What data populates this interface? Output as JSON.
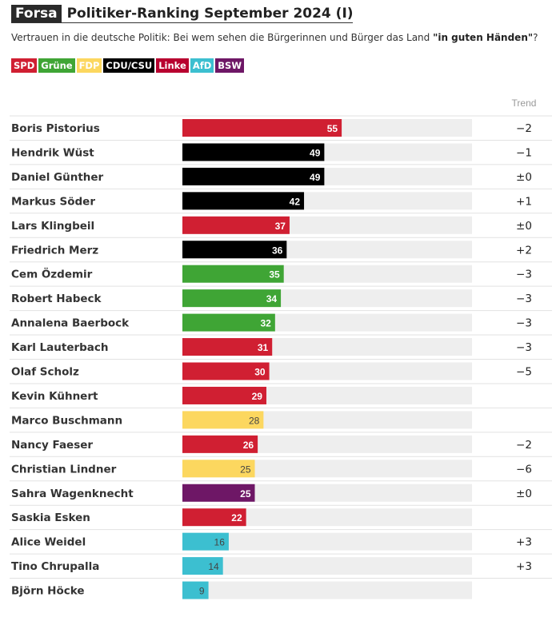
{
  "header": {
    "brand": "Forsa",
    "title": "Politiker-Ranking September 2024 (I)",
    "subtitle_prefix": "Vertrauen in die deutsche Politik: Bei wem sehen die Bürgerinnen und Bürger das Land ",
    "subtitle_bold": "\"in guten Händen\"",
    "subtitle_suffix": "?"
  },
  "legend": [
    {
      "label": "SPD",
      "color": "#d01f32"
    },
    {
      "label": "Grüne",
      "color": "#3fa535"
    },
    {
      "label": "FDP",
      "color": "#fcd75f"
    },
    {
      "label": "CDU/CSU",
      "color": "#000000"
    },
    {
      "label": "Linke",
      "color": "#b8002f"
    },
    {
      "label": "AfD",
      "color": "#3cbfd0"
    },
    {
      "label": "BSW",
      "color": "#6e1766"
    }
  ],
  "chart_data": {
    "type": "bar",
    "orientation": "horizontal",
    "xlim": [
      0,
      100
    ],
    "trend_header": "Trend",
    "rows": [
      {
        "name": "Boris Pistorius",
        "value": 55,
        "party": "SPD",
        "color": "#d01f32",
        "trend": "−2"
      },
      {
        "name": "Hendrik Wüst",
        "value": 49,
        "party": "CDU/CSU",
        "color": "#000000",
        "trend": "−1"
      },
      {
        "name": "Daniel Günther",
        "value": 49,
        "party": "CDU/CSU",
        "color": "#000000",
        "trend": "±0"
      },
      {
        "name": "Markus Söder",
        "value": 42,
        "party": "CDU/CSU",
        "color": "#000000",
        "trend": "+1"
      },
      {
        "name": "Lars Klingbeil",
        "value": 37,
        "party": "SPD",
        "color": "#d01f32",
        "trend": "±0"
      },
      {
        "name": "Friedrich Merz",
        "value": 36,
        "party": "CDU/CSU",
        "color": "#000000",
        "trend": "+2"
      },
      {
        "name": "Cem Özdemir",
        "value": 35,
        "party": "Grüne",
        "color": "#3fa535",
        "trend": "−3"
      },
      {
        "name": "Robert Habeck",
        "value": 34,
        "party": "Grüne",
        "color": "#3fa535",
        "trend": "−3"
      },
      {
        "name": "Annalena Baerbock",
        "value": 32,
        "party": "Grüne",
        "color": "#3fa535",
        "trend": "−3"
      },
      {
        "name": "Karl Lauterbach",
        "value": 31,
        "party": "SPD",
        "color": "#d01f32",
        "trend": "−3"
      },
      {
        "name": "Olaf Scholz",
        "value": 30,
        "party": "SPD",
        "color": "#d01f32",
        "trend": "−5"
      },
      {
        "name": "Kevin Kühnert",
        "value": 29,
        "party": "SPD",
        "color": "#d01f32",
        "trend": ""
      },
      {
        "name": "Marco Buschmann",
        "value": 28,
        "party": "FDP",
        "color": "#fcd75f",
        "trend": ""
      },
      {
        "name": "Nancy Faeser",
        "value": 26,
        "party": "SPD",
        "color": "#d01f32",
        "trend": "−2"
      },
      {
        "name": "Christian Lindner",
        "value": 25,
        "party": "FDP",
        "color": "#fcd75f",
        "trend": "−6"
      },
      {
        "name": "Sahra Wagenknecht",
        "value": 25,
        "party": "BSW",
        "color": "#6e1766",
        "trend": "±0"
      },
      {
        "name": "Saskia Esken",
        "value": 22,
        "party": "SPD",
        "color": "#d01f32",
        "trend": ""
      },
      {
        "name": "Alice Weidel",
        "value": 16,
        "party": "AfD",
        "color": "#3cbfd0",
        "trend": "+3"
      },
      {
        "name": "Tino Chrupalla",
        "value": 14,
        "party": "AfD",
        "color": "#3cbfd0",
        "trend": "+3"
      },
      {
        "name": "Björn Höcke",
        "value": 9,
        "party": "AfD",
        "color": "#3cbfd0",
        "trend": ""
      }
    ]
  }
}
